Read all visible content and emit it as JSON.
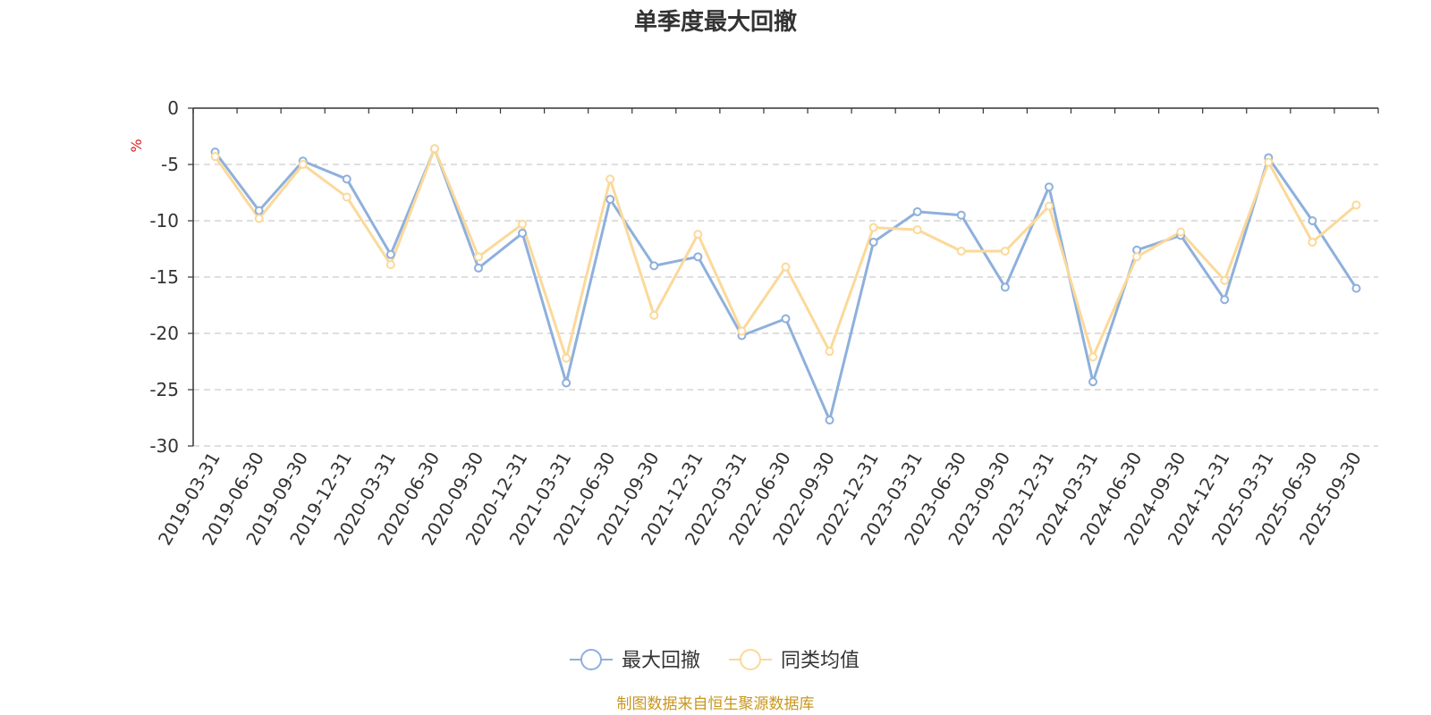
{
  "chart_data": {
    "type": "line",
    "title": "单季度最大回撤",
    "ylabel": "%",
    "ylim": [
      -30,
      0
    ],
    "yticks": [
      0,
      -5,
      -10,
      -15,
      -20,
      -25,
      -30
    ],
    "grid": true,
    "legend_position": "bottom-center",
    "categories": [
      "2019-03-31",
      "2019-06-30",
      "2019-09-30",
      "2019-12-31",
      "2020-03-31",
      "2020-06-30",
      "2020-09-30",
      "2020-12-31",
      "2021-03-31",
      "2021-06-30",
      "2021-09-30",
      "2021-12-31",
      "2022-03-31",
      "2022-06-30",
      "2022-09-30",
      "2022-12-31",
      "2023-03-31",
      "2023-06-30",
      "2023-09-30",
      "2023-12-31",
      "2024-03-31",
      "2024-06-30",
      "2024-09-30",
      "2024-12-31",
      "2025-03-31",
      "2025-06-30",
      "2025-09-30"
    ],
    "series": [
      {
        "name": "最大回撤",
        "color": "#8eb0dc",
        "values": [
          -3.9,
          -9.1,
          -4.7,
          -6.3,
          -13.0,
          -3.6,
          -14.2,
          -11.1,
          -24.4,
          -8.1,
          -14.0,
          -13.2,
          -20.2,
          -18.7,
          -27.7,
          -11.9,
          -9.2,
          -9.5,
          -15.9,
          -7.0,
          -24.3,
          -12.6,
          -11.3,
          -17.0,
          -4.4,
          -10.0,
          -16.0
        ]
      },
      {
        "name": "同类均值",
        "color": "#fbd99a",
        "values": [
          -4.3,
          -9.8,
          -5.0,
          -7.9,
          -13.9,
          -3.6,
          -13.2,
          -10.3,
          -22.2,
          -6.3,
          -18.4,
          -11.2,
          -19.8,
          -14.1,
          -21.6,
          -10.6,
          -10.8,
          -12.7,
          -12.7,
          -8.7,
          -22.1,
          -13.2,
          -11.0,
          -15.3,
          -4.8,
          -11.9,
          -8.6
        ]
      }
    ]
  },
  "footer": {
    "source": "制图数据来自恒生聚源数据库"
  }
}
